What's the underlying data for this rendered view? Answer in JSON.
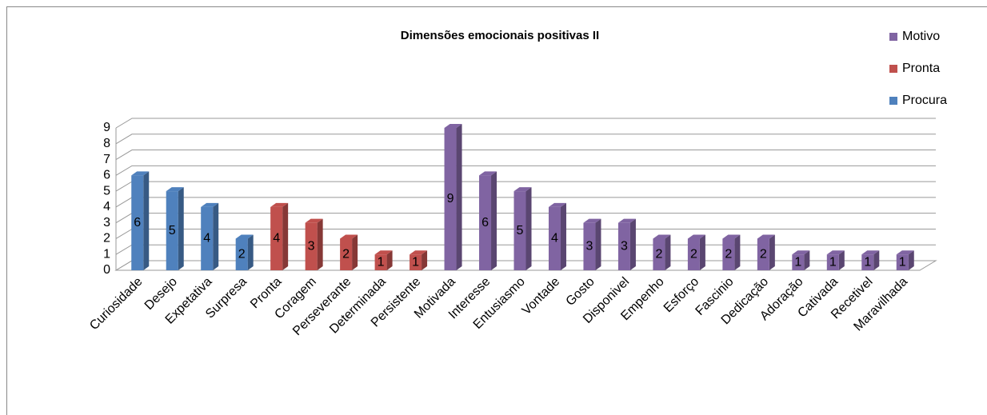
{
  "chart_data": {
    "type": "bar3d",
    "title": "Dimensões emocionais positivas II",
    "categories": [
      "Curiosidade",
      "Desejo",
      "Expetativa",
      "Surpresa",
      "Pronta",
      "Coragem",
      "Perseverante",
      "Determinada",
      "Persistente",
      "Motivada",
      "Interesse",
      "Entusiasmo",
      "Vontade",
      "Gosto",
      "Disponivel",
      "Empenho",
      "Esforço",
      "Fascinio",
      "Dedicação",
      "Adoração",
      "Cativada",
      "Recetivel",
      "Maravilhada"
    ],
    "series": [
      {
        "name": "Motivo",
        "color": "#8064a2",
        "values": [
          null,
          null,
          null,
          null,
          null,
          null,
          null,
          null,
          null,
          9,
          6,
          5,
          4,
          3,
          3,
          2,
          2,
          2,
          2,
          1,
          1,
          1,
          1
        ]
      },
      {
        "name": "Pronta",
        "color": "#c0504d",
        "values": [
          null,
          null,
          null,
          null,
          4,
          3,
          2,
          1,
          1,
          null,
          null,
          null,
          null,
          null,
          null,
          null,
          null,
          null,
          null,
          null,
          null,
          null,
          null
        ]
      },
      {
        "name": "Procura",
        "color": "#4f81bd",
        "values": [
          6,
          5,
          4,
          2,
          null,
          null,
          null,
          null,
          null,
          null,
          null,
          null,
          null,
          null,
          null,
          null,
          null,
          null,
          null,
          null,
          null,
          null,
          null
        ]
      }
    ],
    "ylim": [
      0,
      9
    ],
    "yticks": [
      0,
      1,
      2,
      3,
      4,
      5,
      6,
      7,
      8,
      9
    ],
    "grid": true,
    "legend": "right"
  }
}
